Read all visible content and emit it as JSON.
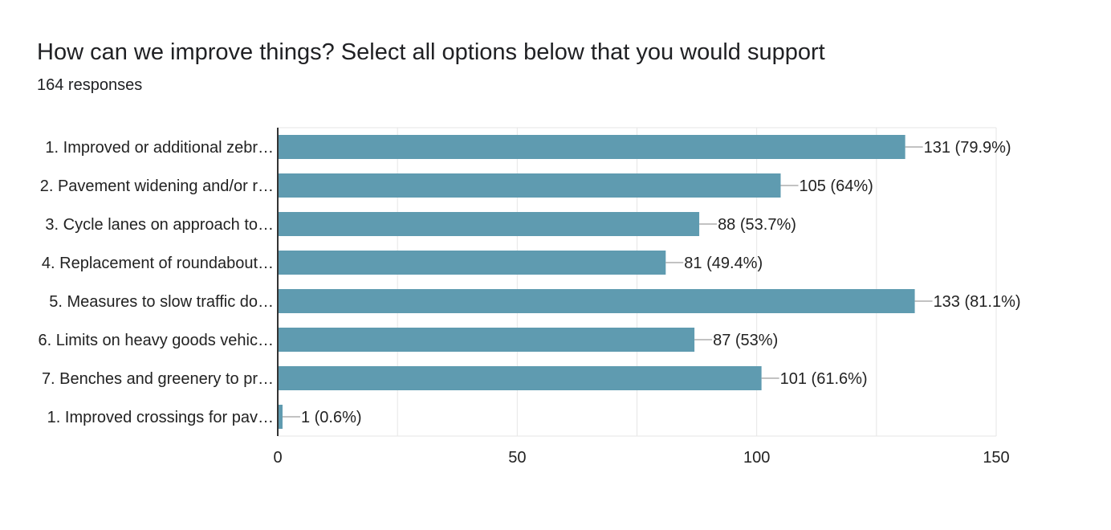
{
  "header": {
    "title": "How can we improve things? Select all options below that you would support",
    "subtitle": "164 responses"
  },
  "colors": {
    "bar": "#5f9bb0",
    "grid": "#e6e6e6",
    "axis": "#333333",
    "leader": "#9e9e9e",
    "text": "#222222"
  },
  "chart_data": {
    "type": "bar",
    "orientation": "horizontal",
    "categories": [
      "1. Improved or additional zebr…",
      "2. Pavement widening and/or r…",
      "3. Cycle lanes on approach to…",
      "4. Replacement of roundabout…",
      "5. Measures to slow traffic do…",
      "6. Limits on heavy goods vehic…",
      "7. Benches and greenery to pr…",
      "1. Improved crossings for pav…"
    ],
    "values": [
      131,
      105,
      88,
      81,
      133,
      87,
      101,
      1
    ],
    "data_labels": [
      "131 (79.9%)",
      "105 (64%)",
      "88 (53.7%)",
      "81 (49.4%)",
      "133 (81.1%)",
      "87 (53%)",
      "101 (61.6%)",
      "1 (0.6%)"
    ],
    "xlim": [
      0,
      150
    ],
    "xticks": [
      0,
      50,
      100,
      150
    ],
    "grid": true,
    "legend": "none"
  }
}
